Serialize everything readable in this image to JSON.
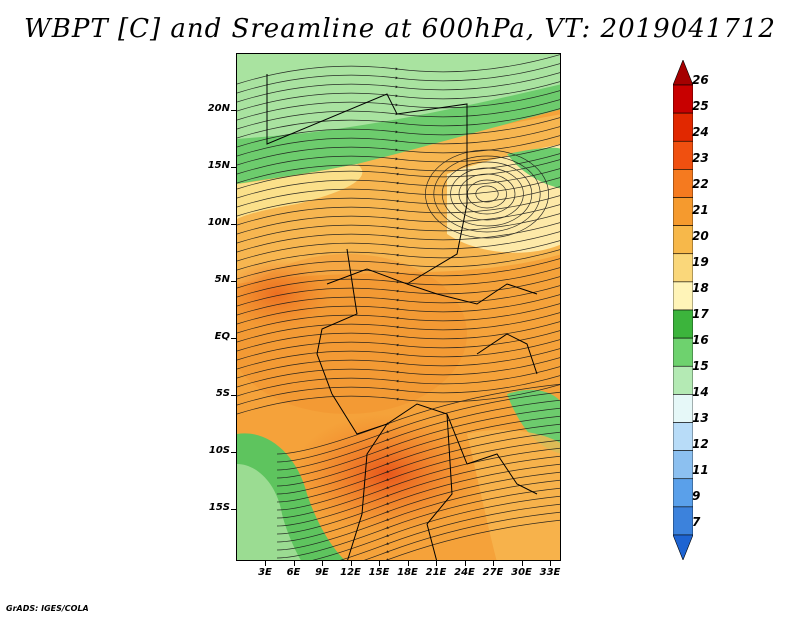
{
  "title": "WBPT [C] and Sreamline at 600hPa, VT: 2019041712",
  "credit": "GrADS: IGES/COLA",
  "map": {
    "lat_labels": [
      "20N",
      "15N",
      "10N",
      "5N",
      "EQ",
      "5S",
      "10S",
      "15S"
    ],
    "lon_labels": [
      "3E",
      "6E",
      "9E",
      "12E",
      "15E",
      "18E",
      "21E",
      "24E",
      "27E",
      "30E",
      "33E"
    ]
  },
  "legend": {
    "labels": [
      "26",
      "25",
      "24",
      "23",
      "22",
      "21",
      "20",
      "19",
      "18",
      "17",
      "16",
      "15",
      "14",
      "13",
      "12",
      "11",
      "9",
      "7"
    ],
    "colors": [
      "#a50000",
      "#c80000",
      "#e12800",
      "#f05010",
      "#f57a1f",
      "#f59a2e",
      "#f7b84a",
      "#fad77a",
      "#fff4b8",
      "#3cb43c",
      "#6ed26e",
      "#b4eab4",
      "#e6f8f8",
      "#b8dcf8",
      "#8cc0f0",
      "#5aa0ea",
      "#3c82dc",
      "#1e64d2"
    ]
  }
}
